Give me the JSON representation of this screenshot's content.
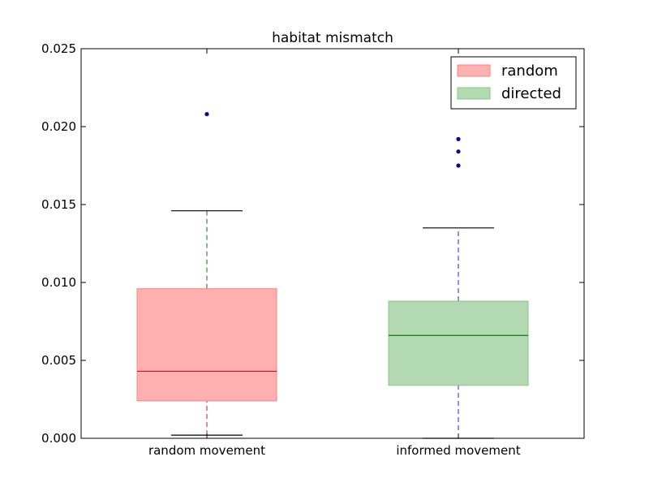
{
  "chart_data": {
    "type": "box",
    "title": "habitat mismatch",
    "xlabel": "",
    "ylabel": "",
    "ylim": [
      0,
      0.025
    ],
    "yticks": [
      0.0,
      0.005,
      0.01,
      0.015,
      0.02,
      0.025
    ],
    "ytick_labels": [
      "0.000",
      "0.005",
      "0.010",
      "0.015",
      "0.020",
      "0.025"
    ],
    "categories": [
      "random movement",
      "informed movement"
    ],
    "grid": false,
    "legend_position": "top-right",
    "series": [
      {
        "name": "random",
        "category": "random movement",
        "whisker_low": 0.0002,
        "q1": 0.0024,
        "median": 0.0043,
        "q3": 0.0096,
        "whisker_high": 0.0146,
        "outliers": [
          0.0208
        ],
        "box_color": "#ffb0b0",
        "box_edge": "#ff8080",
        "median_color": "#d01010",
        "lower_whisker_color": "#d01010",
        "upper_whisker_color": "#107010",
        "flier_color": "#0a0a8a"
      },
      {
        "name": "directed",
        "category": "informed movement",
        "whisker_low": 0.0,
        "q1": 0.0034,
        "median": 0.0066,
        "q3": 0.0088,
        "whisker_high": 0.0135,
        "outliers": [
          0.0175,
          0.0184,
          0.0192
        ],
        "box_color": "#b2d9b2",
        "box_edge": "#88c488",
        "median_color": "#107010",
        "lower_whisker_color": "#2020e0",
        "upper_whisker_color": "#2020e0",
        "flier_color": "#0a0a8a"
      }
    ],
    "legend": [
      {
        "label": "random",
        "color": "#ffb0b0",
        "edge": "#ff8080"
      },
      {
        "label": "directed",
        "color": "#b2d9b2",
        "edge": "#88c488"
      }
    ]
  }
}
